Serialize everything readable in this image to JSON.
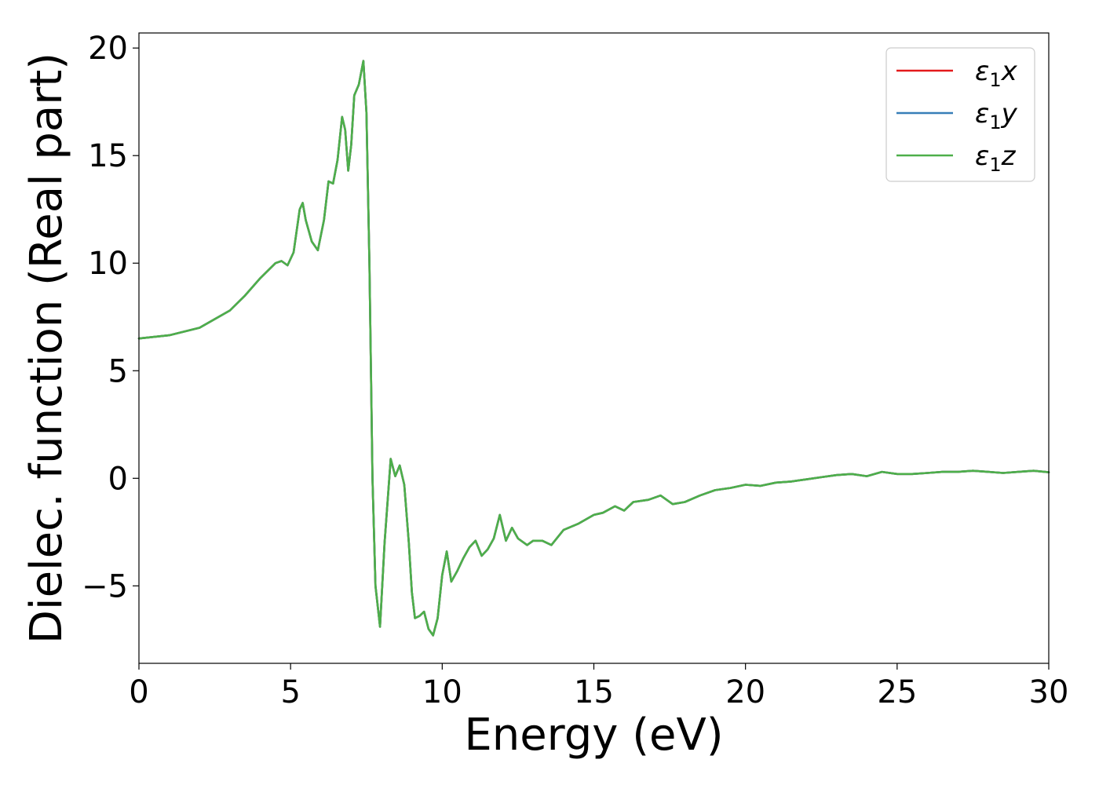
{
  "chart_data": {
    "type": "line",
    "xlabel": "Energy (eV)",
    "ylabel": "Dielec. function (Real part)",
    "xlim": [
      0,
      30
    ],
    "ylim": [
      -8.6,
      20.7
    ],
    "xticks": [
      0,
      5,
      10,
      15,
      20,
      25,
      30
    ],
    "xtick_labels": [
      "0",
      "5",
      "10",
      "15",
      "20",
      "25",
      "30"
    ],
    "yticks": [
      -5,
      0,
      5,
      10,
      15,
      20
    ],
    "ytick_labels": [
      "−5",
      "0",
      "5",
      "10",
      "15",
      "20"
    ],
    "grid": false,
    "legend_position": "top-right",
    "series": [
      {
        "legend_symbol": "ε",
        "legend_subscript": "1",
        "legend_suffix": "x",
        "color": "#e41a1c",
        "x": [
          0,
          1,
          2,
          3,
          3.5,
          4,
          4.5,
          4.7,
          4.9,
          5.1,
          5.3,
          5.4,
          5.5,
          5.7,
          5.9,
          6.1,
          6.25,
          6.4,
          6.55,
          6.7,
          6.8,
          6.9,
          7.0,
          7.1,
          7.25,
          7.4,
          7.5,
          7.6,
          7.7,
          7.8,
          7.95,
          8.1,
          8.3,
          8.45,
          8.6,
          8.75,
          8.9,
          9.0,
          9.1,
          9.25,
          9.4,
          9.55,
          9.7,
          9.85,
          10.0,
          10.15,
          10.3,
          10.5,
          10.7,
          10.9,
          11.1,
          11.3,
          11.5,
          11.7,
          11.9,
          12.1,
          12.3,
          12.5,
          12.8,
          13.0,
          13.3,
          13.6,
          14.0,
          14.5,
          15.0,
          15.3,
          15.7,
          16.0,
          16.3,
          16.8,
          17.2,
          17.6,
          18.0,
          18.5,
          19.0,
          19.5,
          20.0,
          20.5,
          21.0,
          21.5,
          22.0,
          22.5,
          23.0,
          23.5,
          24.0,
          24.5,
          25.0,
          25.5,
          26.0,
          26.5,
          27.0,
          27.5,
          28.0,
          28.5,
          29.0,
          29.5,
          30.0
        ],
        "y": [
          6.5,
          6.65,
          7.0,
          7.8,
          8.5,
          9.3,
          10.0,
          10.1,
          9.9,
          10.5,
          12.5,
          12.8,
          12.0,
          11.0,
          10.6,
          12.0,
          13.8,
          13.7,
          14.8,
          16.8,
          16.2,
          14.3,
          15.5,
          17.8,
          18.3,
          19.4,
          17.0,
          10.0,
          0.0,
          -5.0,
          -6.9,
          -3.0,
          0.9,
          0.1,
          0.6,
          -0.3,
          -3.0,
          -5.3,
          -6.5,
          -6.4,
          -6.2,
          -7.0,
          -7.3,
          -6.5,
          -4.5,
          -3.4,
          -4.8,
          -4.3,
          -3.7,
          -3.2,
          -2.9,
          -3.6,
          -3.3,
          -2.8,
          -1.7,
          -2.9,
          -2.3,
          -2.8,
          -3.1,
          -2.9,
          -2.9,
          -3.1,
          -2.4,
          -2.1,
          -1.7,
          -1.6,
          -1.3,
          -1.5,
          -1.1,
          -1.0,
          -0.8,
          -1.2,
          -1.1,
          -0.8,
          -0.55,
          -0.45,
          -0.3,
          -0.35,
          -0.2,
          -0.15,
          -0.05,
          0.05,
          0.15,
          0.2,
          0.1,
          0.3,
          0.2,
          0.2,
          0.25,
          0.3,
          0.3,
          0.35,
          0.3,
          0.25,
          0.3,
          0.35,
          0.28
        ]
      },
      {
        "legend_symbol": "ε",
        "legend_subscript": "1",
        "legend_suffix": "y",
        "color": "#377eb8",
        "x": [
          0,
          1,
          2,
          3,
          3.5,
          4,
          4.5,
          4.7,
          4.9,
          5.1,
          5.3,
          5.4,
          5.5,
          5.7,
          5.9,
          6.1,
          6.25,
          6.4,
          6.55,
          6.7,
          6.8,
          6.9,
          7.0,
          7.1,
          7.25,
          7.4,
          7.5,
          7.6,
          7.7,
          7.8,
          7.95,
          8.1,
          8.3,
          8.45,
          8.6,
          8.75,
          8.9,
          9.0,
          9.1,
          9.25,
          9.4,
          9.55,
          9.7,
          9.85,
          10.0,
          10.15,
          10.3,
          10.5,
          10.7,
          10.9,
          11.1,
          11.3,
          11.5,
          11.7,
          11.9,
          12.1,
          12.3,
          12.5,
          12.8,
          13.0,
          13.3,
          13.6,
          14.0,
          14.5,
          15.0,
          15.3,
          15.7,
          16.0,
          16.3,
          16.8,
          17.2,
          17.6,
          18.0,
          18.5,
          19.0,
          19.5,
          20.0,
          20.5,
          21.0,
          21.5,
          22.0,
          22.5,
          23.0,
          23.5,
          24.0,
          24.5,
          25.0,
          25.5,
          26.0,
          26.5,
          27.0,
          27.5,
          28.0,
          28.5,
          29.0,
          29.5,
          30.0
        ],
        "y": [
          6.5,
          6.65,
          7.0,
          7.8,
          8.5,
          9.3,
          10.0,
          10.1,
          9.9,
          10.5,
          12.5,
          12.8,
          12.0,
          11.0,
          10.6,
          12.0,
          13.8,
          13.7,
          14.8,
          16.8,
          16.2,
          14.3,
          15.5,
          17.8,
          18.3,
          19.4,
          17.0,
          10.0,
          0.0,
          -5.0,
          -6.9,
          -3.0,
          0.9,
          0.1,
          0.6,
          -0.3,
          -3.0,
          -5.3,
          -6.5,
          -6.4,
          -6.2,
          -7.0,
          -7.3,
          -6.5,
          -4.5,
          -3.4,
          -4.8,
          -4.3,
          -3.7,
          -3.2,
          -2.9,
          -3.6,
          -3.3,
          -2.8,
          -1.7,
          -2.9,
          -2.3,
          -2.8,
          -3.1,
          -2.9,
          -2.9,
          -3.1,
          -2.4,
          -2.1,
          -1.7,
          -1.6,
          -1.3,
          -1.5,
          -1.1,
          -1.0,
          -0.8,
          -1.2,
          -1.1,
          -0.8,
          -0.55,
          -0.45,
          -0.3,
          -0.35,
          -0.2,
          -0.15,
          -0.05,
          0.05,
          0.15,
          0.2,
          0.1,
          0.3,
          0.2,
          0.2,
          0.25,
          0.3,
          0.3,
          0.35,
          0.3,
          0.25,
          0.3,
          0.35,
          0.28
        ]
      },
      {
        "legend_symbol": "ε",
        "legend_subscript": "1",
        "legend_suffix": "z",
        "color": "#4daf4a",
        "x": [
          0,
          1,
          2,
          3,
          3.5,
          4,
          4.5,
          4.7,
          4.9,
          5.1,
          5.3,
          5.4,
          5.5,
          5.7,
          5.9,
          6.1,
          6.25,
          6.4,
          6.55,
          6.7,
          6.8,
          6.9,
          7.0,
          7.1,
          7.25,
          7.4,
          7.5,
          7.6,
          7.7,
          7.8,
          7.95,
          8.1,
          8.3,
          8.45,
          8.6,
          8.75,
          8.9,
          9.0,
          9.1,
          9.25,
          9.4,
          9.55,
          9.7,
          9.85,
          10.0,
          10.15,
          10.3,
          10.5,
          10.7,
          10.9,
          11.1,
          11.3,
          11.5,
          11.7,
          11.9,
          12.1,
          12.3,
          12.5,
          12.8,
          13.0,
          13.3,
          13.6,
          14.0,
          14.5,
          15.0,
          15.3,
          15.7,
          16.0,
          16.3,
          16.8,
          17.2,
          17.6,
          18.0,
          18.5,
          19.0,
          19.5,
          20.0,
          20.5,
          21.0,
          21.5,
          22.0,
          22.5,
          23.0,
          23.5,
          24.0,
          24.5,
          25.0,
          25.5,
          26.0,
          26.5,
          27.0,
          27.5,
          28.0,
          28.5,
          29.0,
          29.5,
          30.0
        ],
        "y": [
          6.5,
          6.65,
          7.0,
          7.8,
          8.5,
          9.3,
          10.0,
          10.1,
          9.9,
          10.5,
          12.5,
          12.8,
          12.0,
          11.0,
          10.6,
          12.0,
          13.8,
          13.7,
          14.8,
          16.8,
          16.2,
          14.3,
          15.5,
          17.8,
          18.3,
          19.4,
          17.0,
          10.0,
          0.0,
          -5.0,
          -6.9,
          -3.0,
          0.9,
          0.1,
          0.6,
          -0.3,
          -3.0,
          -5.3,
          -6.5,
          -6.4,
          -6.2,
          -7.0,
          -7.3,
          -6.5,
          -4.5,
          -3.4,
          -4.8,
          -4.3,
          -3.7,
          -3.2,
          -2.9,
          -3.6,
          -3.3,
          -2.8,
          -1.7,
          -2.9,
          -2.3,
          -2.8,
          -3.1,
          -2.9,
          -2.9,
          -3.1,
          -2.4,
          -2.1,
          -1.7,
          -1.6,
          -1.3,
          -1.5,
          -1.1,
          -1.0,
          -0.8,
          -1.2,
          -1.1,
          -0.8,
          -0.55,
          -0.45,
          -0.3,
          -0.35,
          -0.2,
          -0.15,
          -0.05,
          0.05,
          0.15,
          0.2,
          0.1,
          0.3,
          0.2,
          0.2,
          0.25,
          0.3,
          0.3,
          0.35,
          0.3,
          0.25,
          0.3,
          0.35,
          0.28
        ]
      }
    ]
  }
}
